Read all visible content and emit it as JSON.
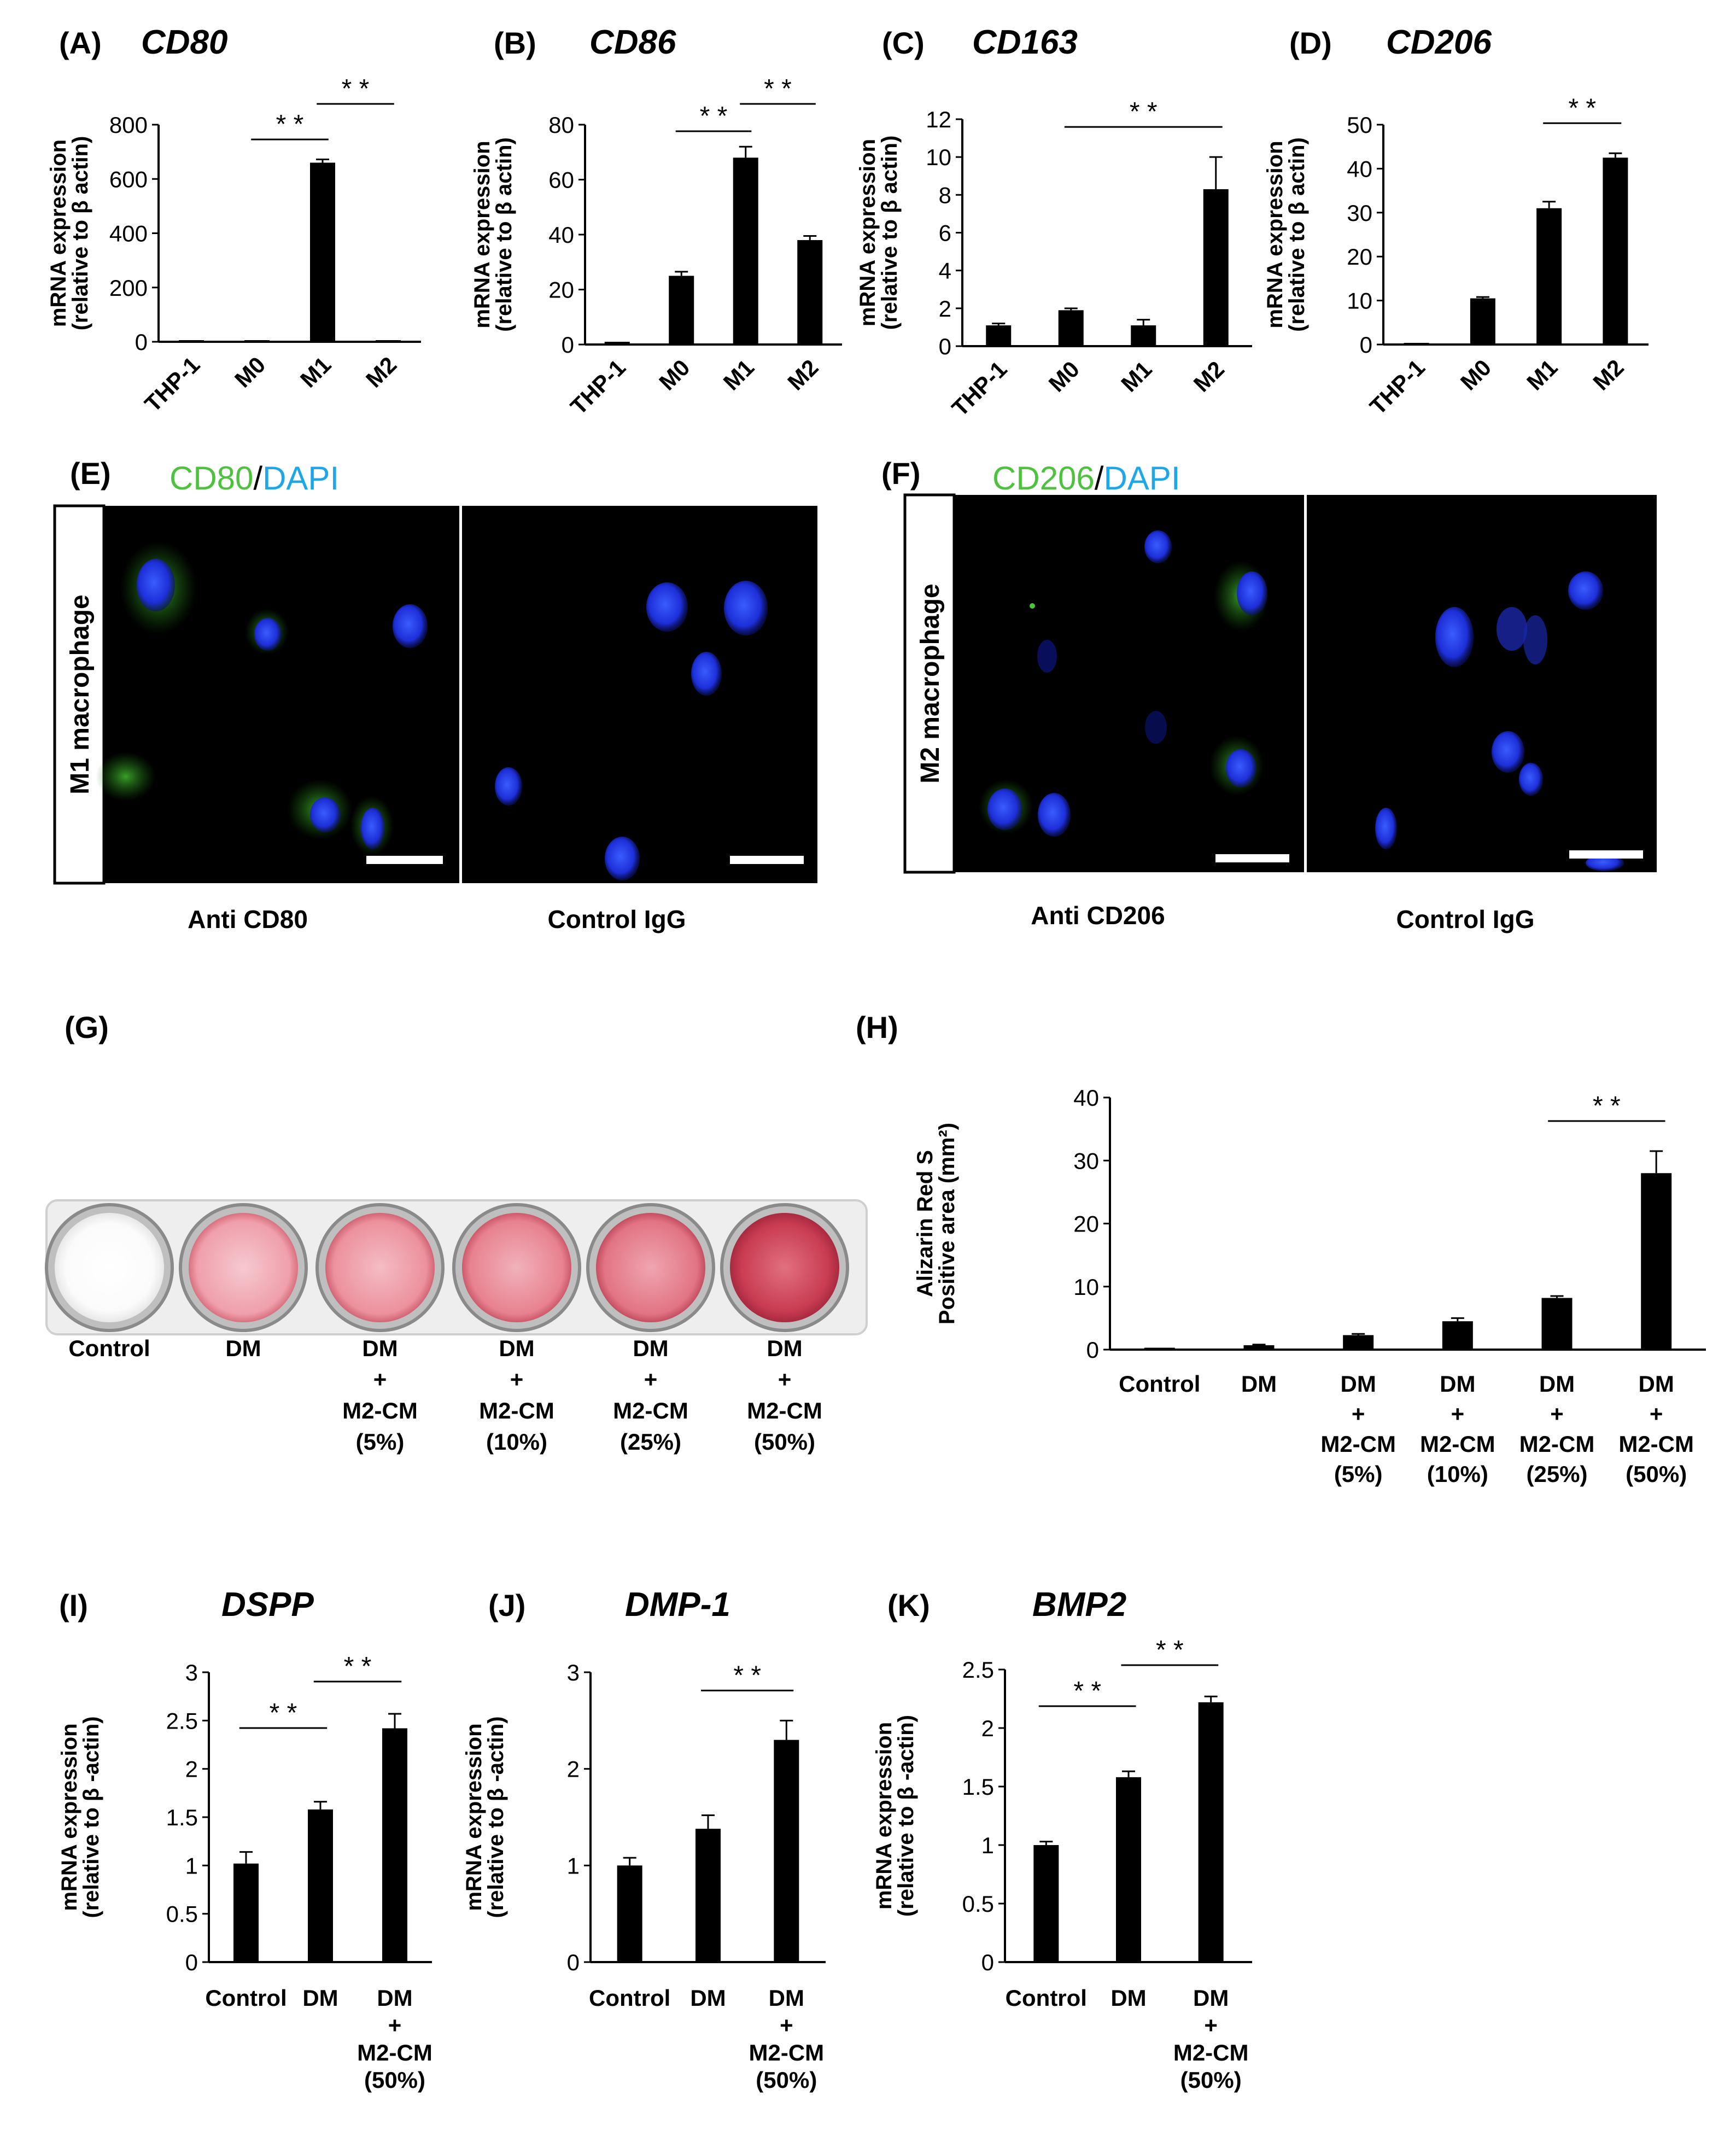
{
  "figure": {
    "panels": [
      {
        "letter": "(A)",
        "title": "CD80"
      },
      {
        "letter": "(B)",
        "title": "CD86"
      },
      {
        "letter": "(C)",
        "title": "CD163"
      },
      {
        "letter": "(D)",
        "title": "CD206"
      },
      {
        "letter": "(E)",
        "stain_marker": "CD80",
        "stain_sep": "/",
        "stain_dapi": "DAPI",
        "side_label": "M1 macrophage",
        "image_labels": [
          "Anti CD80",
          "Control IgG"
        ]
      },
      {
        "letter": "(F)",
        "stain_marker": "CD206",
        "stain_sep": "/",
        "stain_dapi": "DAPI",
        "side_label": "M2 macrophage",
        "image_labels": [
          "Anti CD206",
          "Control IgG"
        ]
      },
      {
        "letter": "(G)",
        "well_labels": [
          [
            "Control"
          ],
          [
            "DM"
          ],
          [
            "DM",
            "+",
            "M2-CM",
            "(5%)"
          ],
          [
            "DM",
            "+",
            "M2-CM",
            "(10%)"
          ],
          [
            "DM",
            "+",
            "M2-CM",
            "(25%)"
          ],
          [
            "DM",
            "+",
            "M2-CM",
            "(50%)"
          ]
        ]
      },
      {
        "letter": "(H)"
      },
      {
        "letter": "(I)",
        "title": "DSPP"
      },
      {
        "letter": "(J)",
        "title": "DMP-1"
      },
      {
        "letter": "(K)",
        "title": "BMP2"
      }
    ],
    "colors": {
      "bar": "#000000",
      "green_stain": "#4ec13f",
      "blue_stain": "#1ea7e8",
      "micrograph_bg": "#000000",
      "scale_bar": "#ffffff"
    }
  },
  "chart_data": [
    {
      "id": "A",
      "type": "bar",
      "title": "CD80",
      "ylabel": [
        "mRNA expression",
        "(relative to β actin)"
      ],
      "categories": [
        "THP-1",
        "M0",
        "M1",
        "M2"
      ],
      "values": [
        5,
        5,
        660,
        5
      ],
      "errors": [
        0,
        0,
        12,
        0
      ],
      "ylim": [
        0,
        800
      ],
      "yticks": [
        "0",
        "200",
        "400",
        "600",
        "800"
      ],
      "significance": [
        {
          "from": 1,
          "to": 2,
          "label": "**"
        },
        {
          "from": 2,
          "to": 3,
          "label": "**"
        }
      ]
    },
    {
      "id": "B",
      "type": "bar",
      "title": "CD86",
      "ylabel": [
        "mRNA expression",
        "(relative to β actin)"
      ],
      "categories": [
        "THP-1",
        "M0",
        "M1",
        "M2"
      ],
      "values": [
        1,
        25,
        68,
        38
      ],
      "errors": [
        0,
        1.5,
        4,
        1.5
      ],
      "ylim": [
        0,
        80
      ],
      "yticks": [
        "0",
        "20",
        "40",
        "60",
        "80"
      ],
      "significance": [
        {
          "from": 1,
          "to": 2,
          "label": "**"
        },
        {
          "from": 2,
          "to": 3,
          "label": "**"
        }
      ]
    },
    {
      "id": "C",
      "type": "bar",
      "title": "CD163",
      "ylabel": [
        "mRNA expression",
        "(relative to β actin)"
      ],
      "categories": [
        "THP-1",
        "M0",
        "M1",
        "M2"
      ],
      "values": [
        1.1,
        1.9,
        1.1,
        8.3
      ],
      "errors": [
        0.1,
        0.1,
        0.3,
        1.7
      ],
      "ylim": [
        0,
        12
      ],
      "yticks": [
        "0",
        "2",
        "4",
        "6",
        "8",
        "10",
        "12"
      ],
      "significance": [
        {
          "from": 1,
          "to": 3,
          "label": "**"
        }
      ]
    },
    {
      "id": "D",
      "type": "bar",
      "title": "CD206",
      "ylabel": [
        "mRNA expression",
        "(relative to β actin)"
      ],
      "categories": [
        "THP-1",
        "M0",
        "M1",
        "M2"
      ],
      "values": [
        0,
        10.5,
        31,
        42.5
      ],
      "errors": [
        0,
        0.3,
        1.5,
        1
      ],
      "ylim": [
        0,
        50
      ],
      "yticks": [
        "0",
        "10",
        "20",
        "30",
        "40",
        "50"
      ],
      "significance": [
        {
          "from": 2,
          "to": 3,
          "label": "**"
        }
      ]
    },
    {
      "id": "H",
      "type": "bar",
      "title": "",
      "ylabel": [
        "Alizarin Red S",
        "Positive area (mm²)"
      ],
      "categories": [
        [
          "Control"
        ],
        [
          "DM"
        ],
        [
          "DM",
          "+",
          "M2-CM",
          "(5%)"
        ],
        [
          "DM",
          "+",
          "M2-CM",
          "(10%)"
        ],
        [
          "DM",
          "+",
          "M2-CM",
          "(25%)"
        ],
        [
          "DM",
          "+",
          "M2-CM",
          "(50%)"
        ]
      ],
      "values": [
        0.3,
        0.7,
        2.3,
        4.5,
        8.2,
        28
      ],
      "errors": [
        0,
        0.1,
        0.2,
        0.5,
        0.3,
        3.5
      ],
      "ylim": [
        0,
        40
      ],
      "yticks": [
        "0",
        "10",
        "20",
        "30",
        "40"
      ],
      "significance": [
        {
          "from": 4,
          "to": 5,
          "label": "**"
        }
      ]
    },
    {
      "id": "I",
      "type": "bar",
      "title": "DSPP",
      "ylabel": [
        "mRNA expression",
        "(relative to β -actin)"
      ],
      "categories": [
        [
          "Control"
        ],
        [
          "DM"
        ],
        [
          "DM",
          "+",
          "M2-CM",
          "(50%)"
        ]
      ],
      "values": [
        1.02,
        1.58,
        2.42
      ],
      "errors": [
        0.12,
        0.08,
        0.15
      ],
      "ylim": [
        0,
        3
      ],
      "yticks": [
        "0",
        "0.5",
        "1",
        "1.5",
        "2",
        "2.5",
        "3"
      ],
      "significance": [
        {
          "from": 0,
          "to": 1,
          "label": "**"
        },
        {
          "from": 1,
          "to": 2,
          "label": "**"
        }
      ]
    },
    {
      "id": "J",
      "type": "bar",
      "title": "DMP-1",
      "ylabel": [
        "mRNA expression",
        "(relative to β -actin)"
      ],
      "categories": [
        [
          "Control"
        ],
        [
          "DM"
        ],
        [
          "DM",
          "+",
          "M2-CM",
          "(50%)"
        ]
      ],
      "values": [
        1.0,
        1.38,
        2.3
      ],
      "errors": [
        0.08,
        0.14,
        0.2
      ],
      "ylim": [
        0,
        3
      ],
      "yticks": [
        "0",
        "1",
        "2",
        "3"
      ],
      "significance": [
        {
          "from": 1,
          "to": 2,
          "label": "**"
        }
      ]
    },
    {
      "id": "K",
      "type": "bar",
      "title": "BMP2",
      "ylabel": [
        "mRNA expression",
        "(relative to β -actin)"
      ],
      "categories": [
        [
          "Control"
        ],
        [
          "DM"
        ],
        [
          "DM",
          "+",
          "M2-CM",
          "(50%)"
        ]
      ],
      "values": [
        1.0,
        1.58,
        2.22
      ],
      "errors": [
        0.03,
        0.05,
        0.05
      ],
      "ylim": [
        0,
        2.5
      ],
      "yticks": [
        "0",
        "0.5",
        "1",
        "1.5",
        "2",
        "2.5"
      ],
      "significance": [
        {
          "from": 0,
          "to": 1,
          "label": "**"
        },
        {
          "from": 1,
          "to": 2,
          "label": "**"
        }
      ]
    }
  ]
}
